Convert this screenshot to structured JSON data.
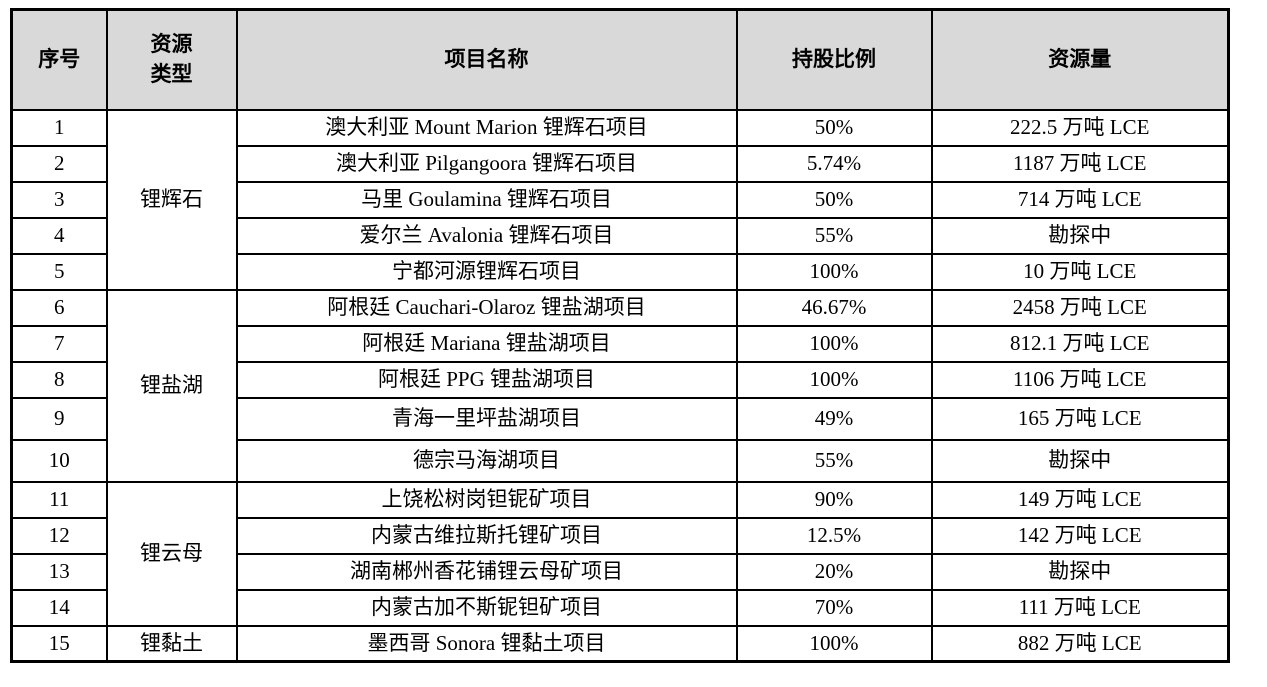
{
  "colors": {
    "header_bg": "#d9d9d9",
    "border": "#000000",
    "text": "#000000",
    "page_bg": "#ffffff"
  },
  "table": {
    "header": {
      "index": "序号",
      "type_line1": "资源",
      "type_line2": "类型",
      "project": "项目名称",
      "share": "持股比例",
      "resource": "资源量"
    },
    "type_groups": [
      {
        "label": "锂辉石",
        "rowspan": 5
      },
      {
        "label": "锂盐湖",
        "rowspan": 5
      },
      {
        "label": "锂云母",
        "rowspan": 4
      },
      {
        "label": "锂黏土",
        "rowspan": 1
      }
    ],
    "rows": [
      {
        "no": "1",
        "project": "澳大利亚 Mount Marion 锂辉石项目",
        "share": "50%",
        "resource": "222.5 万吨 LCE"
      },
      {
        "no": "2",
        "project": "澳大利亚 Pilgangoora 锂辉石项目",
        "share": "5.74%",
        "resource": "1187 万吨 LCE"
      },
      {
        "no": "3",
        "project": "马里 Goulamina 锂辉石项目",
        "share": "50%",
        "resource": "714 万吨 LCE"
      },
      {
        "no": "4",
        "project": "爱尔兰 Avalonia 锂辉石项目",
        "share": "55%",
        "resource": "勘探中"
      },
      {
        "no": "5",
        "project": "宁都河源锂辉石项目",
        "share": "100%",
        "resource": "10 万吨 LCE"
      },
      {
        "no": "6",
        "project": "阿根廷 Cauchari-Olaroz 锂盐湖项目",
        "share": "46.67%",
        "resource": "2458 万吨 LCE"
      },
      {
        "no": "7",
        "project": "阿根廷 Mariana 锂盐湖项目",
        "share": "100%",
        "resource": "812.1 万吨 LCE"
      },
      {
        "no": "8",
        "project": "阿根廷 PPG 锂盐湖项目",
        "share": "100%",
        "resource": "1106 万吨 LCE"
      },
      {
        "no": "9",
        "project": "青海一里坪盐湖项目",
        "share": "49%",
        "resource": "165 万吨 LCE"
      },
      {
        "no": "10",
        "project": "德宗马海湖项目",
        "share": "55%",
        "resource": "勘探中"
      },
      {
        "no": "11",
        "project": "上饶松树岗钽铌矿项目",
        "share": "90%",
        "resource": "149 万吨 LCE"
      },
      {
        "no": "12",
        "project": "内蒙古维拉斯托锂矿项目",
        "share": "12.5%",
        "resource": "142 万吨 LCE"
      },
      {
        "no": "13",
        "project": "湖南郴州香花铺锂云母矿项目",
        "share": "20%",
        "resource": "勘探中"
      },
      {
        "no": "14",
        "project": "内蒙古加不斯铌钽矿项目",
        "share": "70%",
        "resource": "111 万吨 LCE"
      },
      {
        "no": "15",
        "project": "墨西哥 Sonora 锂黏土项目",
        "share": "100%",
        "resource": "882 万吨 LCE"
      }
    ]
  }
}
